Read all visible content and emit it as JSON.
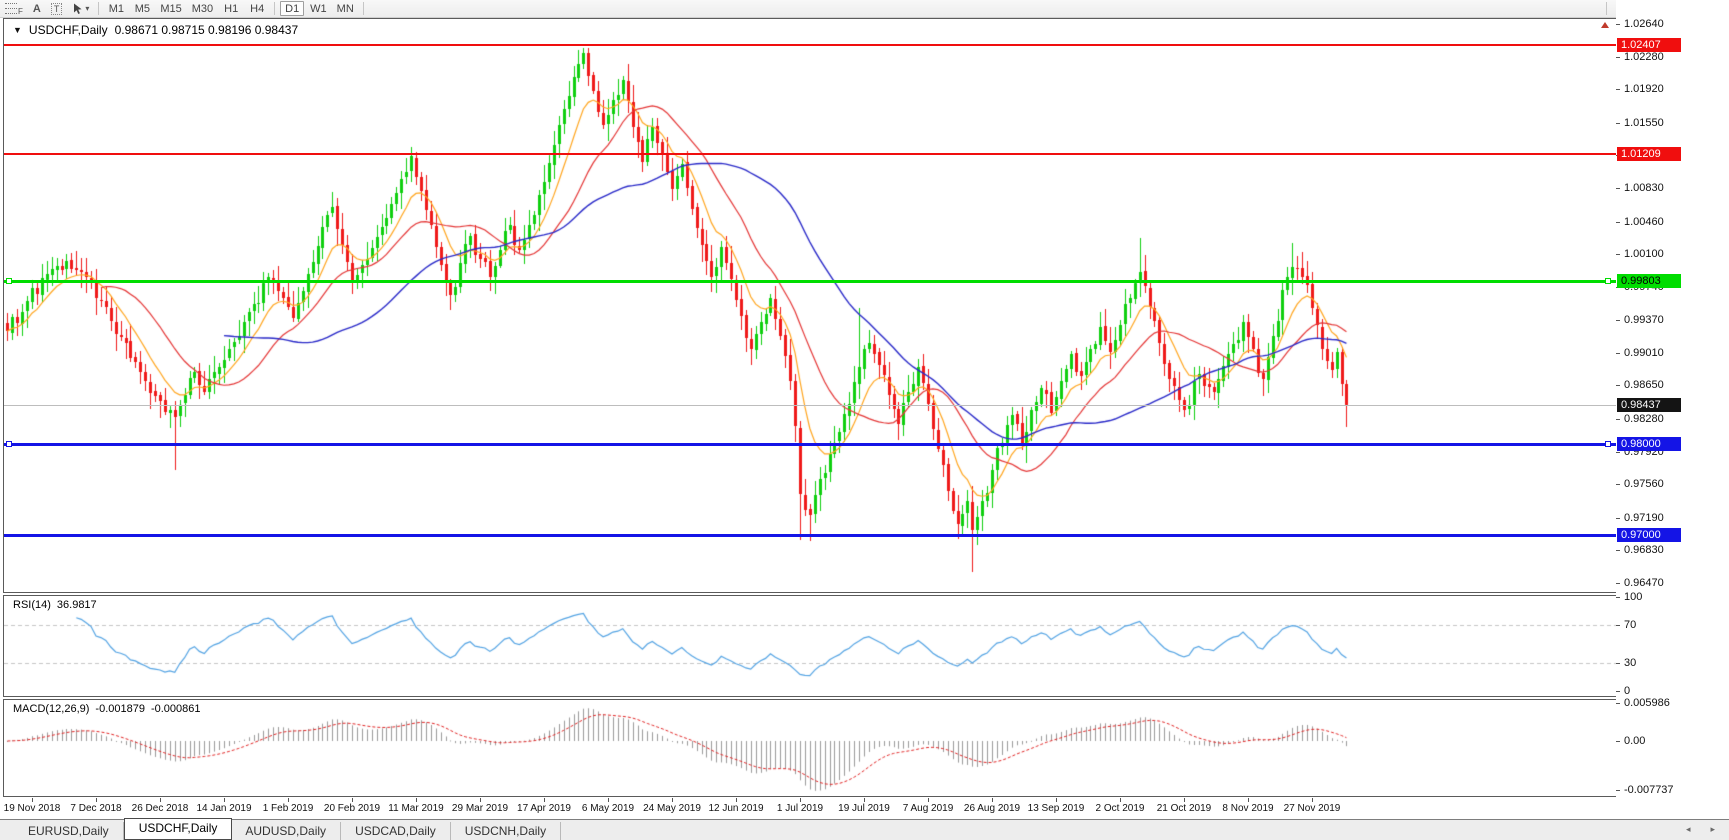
{
  "toolbar": {
    "tools": [
      {
        "name": "fibonacci-tool",
        "glyph": "F"
      },
      {
        "name": "text-tool",
        "glyph": "A"
      },
      {
        "name": "text-label-tool",
        "glyph": "T"
      },
      {
        "name": "arrows-tool",
        "glyph": "cursor",
        "dropdown": "▾"
      }
    ],
    "timeframes": [
      {
        "label": "M1",
        "active": false
      },
      {
        "label": "M5",
        "active": false
      },
      {
        "label": "M15",
        "active": false
      },
      {
        "label": "M30",
        "active": false
      },
      {
        "label": "H1",
        "active": false
      },
      {
        "label": "H4",
        "active": false
      },
      {
        "label": "D1",
        "active": true
      },
      {
        "label": "W1",
        "active": false
      },
      {
        "label": "MN",
        "active": false
      }
    ]
  },
  "chart": {
    "collapse_icon": "▼",
    "title_symbol": "USDCHF,Daily",
    "title_ohlc": "0.98671 0.98715 0.98196 0.98437"
  },
  "price_axis": {
    "labels": [
      {
        "text": "1.02640",
        "value": 1.0264
      },
      {
        "text": "1.02280",
        "value": 1.0228
      },
      {
        "text": "1.01920",
        "value": 1.0192
      },
      {
        "text": "1.01550",
        "value": 1.0155
      },
      {
        "text": "1.01190",
        "value": 1.0119
      },
      {
        "text": "1.00830",
        "value": 1.0083
      },
      {
        "text": "1.00460",
        "value": 1.0046
      },
      {
        "text": "1.00100",
        "value": 1.001
      },
      {
        "text": "0.99740",
        "value": 0.9974
      },
      {
        "text": "0.99370",
        "value": 0.9937
      },
      {
        "text": "0.99010",
        "value": 0.9901
      },
      {
        "text": "0.98650",
        "value": 0.9865
      },
      {
        "text": "0.98280",
        "value": 0.9828
      },
      {
        "text": "0.97920",
        "value": 0.9792
      },
      {
        "text": "0.97560",
        "value": 0.9756
      },
      {
        "text": "0.97190",
        "value": 0.9719
      },
      {
        "text": "0.96830",
        "value": 0.9683
      },
      {
        "text": "0.96470",
        "value": 0.9647
      }
    ],
    "badges": [
      {
        "text": "1.02407",
        "value": 1.02407,
        "bg": "#f00e0e",
        "fg": "#ffffff"
      },
      {
        "text": "1.01209",
        "value": 1.01209,
        "bg": "#f00e0e",
        "fg": "#ffffff"
      },
      {
        "text": "0.99803",
        "value": 0.99803,
        "bg": "#00dd00",
        "fg": "#000000"
      },
      {
        "text": "0.98437",
        "value": 0.98437,
        "bg": "#141414",
        "fg": "#ffffff"
      },
      {
        "text": "0.98000",
        "value": 0.98,
        "bg": "#1414e6",
        "fg": "#ffffff"
      },
      {
        "text": "0.97000",
        "value": 0.97,
        "bg": "#1414e6",
        "fg": "#ffffff"
      }
    ]
  },
  "hlines": [
    {
      "value": 1.02407,
      "color": "#f00e0e",
      "thickness": 2,
      "handles": false
    },
    {
      "value": 1.01209,
      "color": "#f00e0e",
      "thickness": 2,
      "handles": false
    },
    {
      "value": 0.99803,
      "color": "#00dd00",
      "thickness": 3,
      "handles": true
    },
    {
      "value": 0.98,
      "color": "#1414e6",
      "thickness": 3,
      "handles": true
    },
    {
      "value": 0.97,
      "color": "#1414e6",
      "thickness": 3,
      "handles": false
    }
  ],
  "current_price": {
    "value": 0.98437,
    "line_color": "#bdbdbd"
  },
  "time_axis": {
    "labels": [
      "19 Nov 2018",
      "7 Dec 2018",
      "26 Dec 2018",
      "14 Jan 2019",
      "1 Feb 2019",
      "20 Feb 2019",
      "11 Mar 2019",
      "29 Mar 2019",
      "17 Apr 2019",
      "6 May 2019",
      "24 May 2019",
      "12 Jun 2019",
      "1 Jul 2019",
      "19 Jul 2019",
      "7 Aug 2019",
      "26 Aug 2019",
      "13 Sep 2019",
      "2 Oct 2019",
      "21 Oct 2019",
      "8 Nov 2019",
      "27 Nov 2019"
    ]
  },
  "rsi": {
    "label": "RSI(14)",
    "value": "36.9817",
    "axis_labels": [
      {
        "text": "100",
        "value": 100
      },
      {
        "text": "70",
        "value": 70
      },
      {
        "text": "30",
        "value": 30
      },
      {
        "text": "0",
        "value": 0
      }
    ],
    "levels": [
      70,
      30
    ],
    "color": "#53a3e3"
  },
  "macd": {
    "label": "MACD(12,26,9)",
    "value_main": "-0.001879",
    "value_signal": "-0.000861",
    "axis_labels": [
      {
        "text": "0.005986",
        "value": 0.005986
      },
      {
        "text": "0.00",
        "value": 0
      },
      {
        "text": "-0.007737",
        "value": -0.007737
      }
    ],
    "histogram_color": "#9a9a9a",
    "signal_color": "#e02222"
  },
  "tabs": {
    "items": [
      {
        "label": "EURUSD,Daily",
        "active": false
      },
      {
        "label": "USDCHF,Daily",
        "active": true
      },
      {
        "label": "AUDUSD,Daily",
        "active": false
      },
      {
        "label": "USDCAD,Daily",
        "active": false
      },
      {
        "label": "USDCNH,Daily",
        "active": false
      }
    ],
    "scroll_left": "◂",
    "scroll_right": "▸"
  },
  "chart_data": {
    "type": "candlestick",
    "symbol": "USDCHF",
    "timeframe": "Daily",
    "bars": 273,
    "current_bar": {
      "open": 0.98671,
      "high": 0.98715,
      "low": 0.98196,
      "close": 0.98437
    },
    "price_range": [
      0.96371,
      1.02706
    ],
    "horizontal_lines": [
      1.02407,
      1.01209,
      0.99803,
      0.98,
      0.97
    ],
    "up_color": "#0fcf0f",
    "down_color": "#ef1a1a",
    "close_anchors": [
      [
        0,
        0.9925
      ],
      [
        4,
        0.9958
      ],
      [
        8,
        0.9988
      ],
      [
        12,
        1.0002
      ],
      [
        16,
        0.9985
      ],
      [
        19,
        0.9958
      ],
      [
        23,
        0.9918
      ],
      [
        27,
        0.988
      ],
      [
        31,
        0.9848
      ],
      [
        34,
        0.983
      ],
      [
        36,
        0.9855
      ],
      [
        38,
        0.988
      ],
      [
        40,
        0.9858
      ],
      [
        43,
        0.9885
      ],
      [
        47,
        0.992
      ],
      [
        50,
        0.9955
      ],
      [
        53,
        0.9985
      ],
      [
        56,
        0.9962
      ],
      [
        58,
        0.994
      ],
      [
        61,
        0.9988
      ],
      [
        64,
        1.004
      ],
      [
        66,
        1.0062
      ],
      [
        68,
        1.002
      ],
      [
        70,
        0.998
      ],
      [
        73,
        1.0005
      ],
      [
        76,
        1.004
      ],
      [
        79,
        1.0078
      ],
      [
        82,
        1.0118
      ],
      [
        84,
        1.008
      ],
      [
        86,
        1.0042
      ],
      [
        88,
        0.9998
      ],
      [
        90,
        0.9965
      ],
      [
        92,
        1.0
      ],
      [
        94,
        1.003
      ],
      [
        96,
        1.0005
      ],
      [
        98,
        0.9985
      ],
      [
        100,
        1.0015
      ],
      [
        102,
        1.0042
      ],
      [
        104,
        1.0015
      ],
      [
        106,
        1.0042
      ],
      [
        109,
        1.009
      ],
      [
        111,
        1.013
      ],
      [
        113,
        1.017
      ],
      [
        115,
        1.0205
      ],
      [
        117,
        1.0232
      ],
      [
        119,
        1.019
      ],
      [
        121,
        1.0152
      ],
      [
        123,
        1.018
      ],
      [
        125,
        1.0202
      ],
      [
        127,
        1.015
      ],
      [
        129,
        1.0112
      ],
      [
        131,
        1.015
      ],
      [
        133,
        1.012
      ],
      [
        135,
        1.0082
      ],
      [
        137,
        1.011
      ],
      [
        139,
        1.006
      ],
      [
        141,
        1.002
      ],
      [
        143,
        0.9985
      ],
      [
        145,
        1.0018
      ],
      [
        147,
        0.9982
      ],
      [
        149,
        0.9942
      ],
      [
        151,
        0.9905
      ],
      [
        153,
        0.9935
      ],
      [
        155,
        0.9962
      ],
      [
        157,
        0.992
      ],
      [
        159,
        0.987
      ],
      [
        160,
        0.982
      ],
      [
        161,
        0.9745
      ],
      [
        163,
        0.9722
      ],
      [
        165,
        0.9762
      ],
      [
        168,
        0.9802
      ],
      [
        171,
        0.9845
      ],
      [
        173,
        0.9885
      ],
      [
        175,
        0.9912
      ],
      [
        177,
        0.9888
      ],
      [
        179,
        0.9855
      ],
      [
        181,
        0.9822
      ],
      [
        183,
        0.9858
      ],
      [
        185,
        0.9885
      ],
      [
        187,
        0.9845
      ],
      [
        189,
        0.9795
      ],
      [
        191,
        0.9748
      ],
      [
        193,
        0.9712
      ],
      [
        195,
        0.9738
      ],
      [
        196,
        0.9705
      ],
      [
        198,
        0.9738
      ],
      [
        200,
        0.9772
      ],
      [
        202,
        0.9802
      ],
      [
        204,
        0.9832
      ],
      [
        206,
        0.98
      ],
      [
        208,
        0.9838
      ],
      [
        210,
        0.9862
      ],
      [
        212,
        0.9835
      ],
      [
        214,
        0.987
      ],
      [
        216,
        0.99
      ],
      [
        218,
        0.9875
      ],
      [
        220,
        0.9905
      ],
      [
        222,
        0.993
      ],
      [
        224,
        0.9902
      ],
      [
        226,
        0.9932
      ],
      [
        228,
        0.9962
      ],
      [
        230,
        0.999
      ],
      [
        232,
        0.9952
      ],
      [
        234,
        0.9912
      ],
      [
        236,
        0.9872
      ],
      [
        239,
        0.9838
      ],
      [
        242,
        0.9878
      ],
      [
        245,
        0.9858
      ],
      [
        248,
        0.99
      ],
      [
        251,
        0.9935
      ],
      [
        253,
        0.9905
      ],
      [
        255,
        0.9872
      ],
      [
        257,
        0.992
      ],
      [
        259,
        0.997
      ],
      [
        261,
        0.9996
      ],
      [
        263,
        0.9985
      ],
      [
        265,
        0.995
      ],
      [
        267,
        0.9905
      ],
      [
        269,
        0.9882
      ],
      [
        270,
        0.9902
      ],
      [
        271,
        0.9867
      ],
      [
        272,
        0.98437
      ]
    ],
    "wick_overrides": [
      {
        "i": 34,
        "low": 0.9772
      },
      {
        "i": 117,
        "high": 1.0238
      },
      {
        "i": 161,
        "low": 0.9695
      },
      {
        "i": 163,
        "low": 0.9693
      },
      {
        "i": 173,
        "high": 0.995
      },
      {
        "i": 196,
        "low": 0.9659
      },
      {
        "i": 230,
        "high": 1.0028
      },
      {
        "i": 261,
        "high": 1.0022
      }
    ],
    "moving_averages": [
      {
        "type": "EMA",
        "period": 9,
        "color": "#ffa51e"
      },
      {
        "type": "SMA",
        "period": 20,
        "color": "#e43535"
      },
      {
        "type": "SMA",
        "period": 45,
        "color": "#2929c8"
      }
    ],
    "indicators": {
      "rsi_period": 14,
      "macd": [
        12,
        26,
        9
      ]
    }
  }
}
